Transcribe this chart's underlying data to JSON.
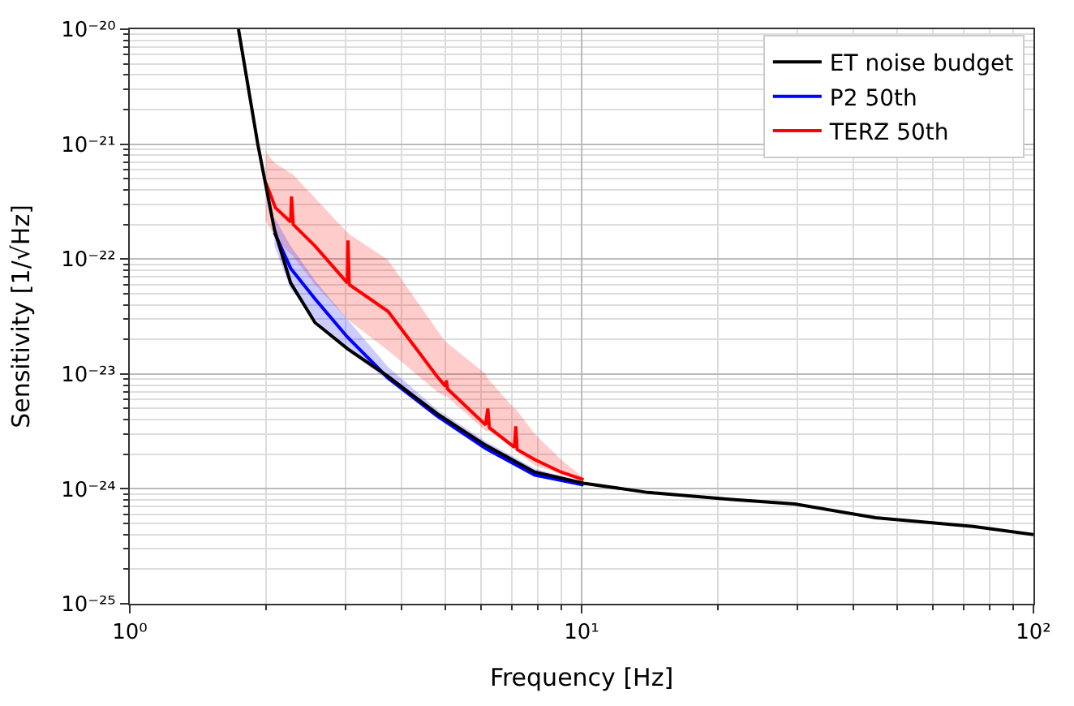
{
  "chart_data": {
    "type": "line",
    "xlabel": "Frequency [Hz]",
    "ylabel": "Sensitivity [1/√Hz]",
    "log": "xy",
    "grid": true,
    "legend": "top right",
    "marker": "none",
    "line_style": "solid",
    "xlim": [
      1,
      100
    ],
    "ylim": [
      1e-25,
      1e-20
    ],
    "xticks": [
      {
        "value": 1,
        "label": "10⁰"
      },
      {
        "value": 10,
        "label": "10¹"
      },
      {
        "value": 100,
        "label": "10²"
      }
    ],
    "yticks": [
      {
        "value": 1e-25,
        "label": "10⁻²⁵"
      },
      {
        "value": 1e-24,
        "label": "10⁻²⁴"
      },
      {
        "value": 1e-23,
        "label": "10⁻²³"
      },
      {
        "value": 1e-22,
        "label": "10⁻²²"
      },
      {
        "value": 1e-21,
        "label": "10⁻²¹"
      },
      {
        "value": 1e-20,
        "label": "10⁻²⁰"
      }
    ],
    "series": [
      {
        "name": "TERZ 50th",
        "color": "#ff0000",
        "x": [
          2.0,
          2.05,
          2.1,
          2.27,
          2.28,
          2.3,
          2.57,
          3.03,
          3.04,
          3.06,
          3.73,
          4.79,
          5.0,
          5.02,
          5.05,
          6.13,
          6.2,
          6.25,
          7.1,
          7.15,
          7.2,
          7.87,
          9.0,
          10.1
        ],
        "values": [
          4.6e-22,
          3.6e-22,
          2.8e-22,
          2.1e-22,
          3.5e-22,
          2e-22,
          1.3e-22,
          6.2e-23,
          1.45e-22,
          6e-23,
          3.5e-23,
          9.5e-24,
          7.8e-24,
          8.8e-24,
          7.4e-24,
          3.6e-24,
          5e-24,
          3.4e-24,
          2.3e-24,
          3.5e-24,
          2.2e-24,
          1.8e-24,
          1.4e-24,
          1.2e-24
        ],
        "lower": [
          2.2e-22,
          1.8e-22,
          1.5e-22,
          1.1e-22,
          1.1e-22,
          1.05e-22,
          6e-23,
          3e-23,
          3e-23,
          2.9e-23,
          1.6e-23,
          7e-24,
          6.4e-24,
          6.4e-24,
          6.3e-24,
          3.2e-24,
          3.2e-24,
          3.2e-24,
          2.2e-24,
          2.2e-24,
          2.1e-24,
          1.6e-24,
          1.35e-24,
          1.15e-24
        ],
        "upper": [
          8.5e-22,
          7.5e-22,
          6.8e-22,
          5.6e-22,
          5.6e-22,
          5.4e-22,
          3.4e-22,
          1.7e-22,
          1.7e-22,
          1.65e-22,
          9.8e-23,
          2.4e-23,
          1.9e-23,
          1.9e-23,
          1.85e-23,
          1e-23,
          9e-24,
          8.8e-24,
          5e-24,
          5e-24,
          4.8e-24,
          3e-24,
          1.8e-24,
          1.25e-24
        ]
      },
      {
        "name": "P2 50th",
        "color": "#0000ff",
        "x": [
          2.09,
          2.27,
          2.57,
          3.03,
          3.73,
          4.79,
          6.13,
          7.87,
          10.1
        ],
        "values": [
          1.7e-22,
          8.3e-23,
          4.5e-23,
          2.1e-23,
          9.2e-24,
          4.3e-24,
          2.25e-24,
          1.32e-24,
          1.08e-24
        ],
        "lower": [
          1.3e-22,
          5.5e-23,
          3e-23,
          1.6e-23,
          8.8e-24,
          4.1e-24,
          2.15e-24,
          1.28e-24,
          1.06e-24
        ],
        "upper": [
          2.3e-22,
          1.3e-22,
          6.5e-23,
          3e-23,
          1.15e-23,
          4.9e-24,
          2.6e-24,
          1.5e-24,
          1.15e-24
        ]
      },
      {
        "name": "ET noise budget",
        "color": "#000000",
        "x": [
          1.74,
          1.92,
          2.09,
          2.27,
          2.57,
          3.03,
          3.73,
          4.79,
          6.13,
          7.87,
          10.1,
          14.0,
          21.2,
          29.6,
          44.7,
          73.6,
          100
        ],
        "values": [
          1e-20,
          1e-21,
          1.8e-22,
          6.2e-23,
          2.8e-23,
          1.66e-23,
          9.5e-24,
          4.5e-24,
          2.4e-24,
          1.4e-24,
          1.12e-24,
          9.3e-25,
          8.1e-25,
          7.4e-25,
          5.6e-25,
          4.7e-25,
          4e-25
        ]
      }
    ]
  }
}
